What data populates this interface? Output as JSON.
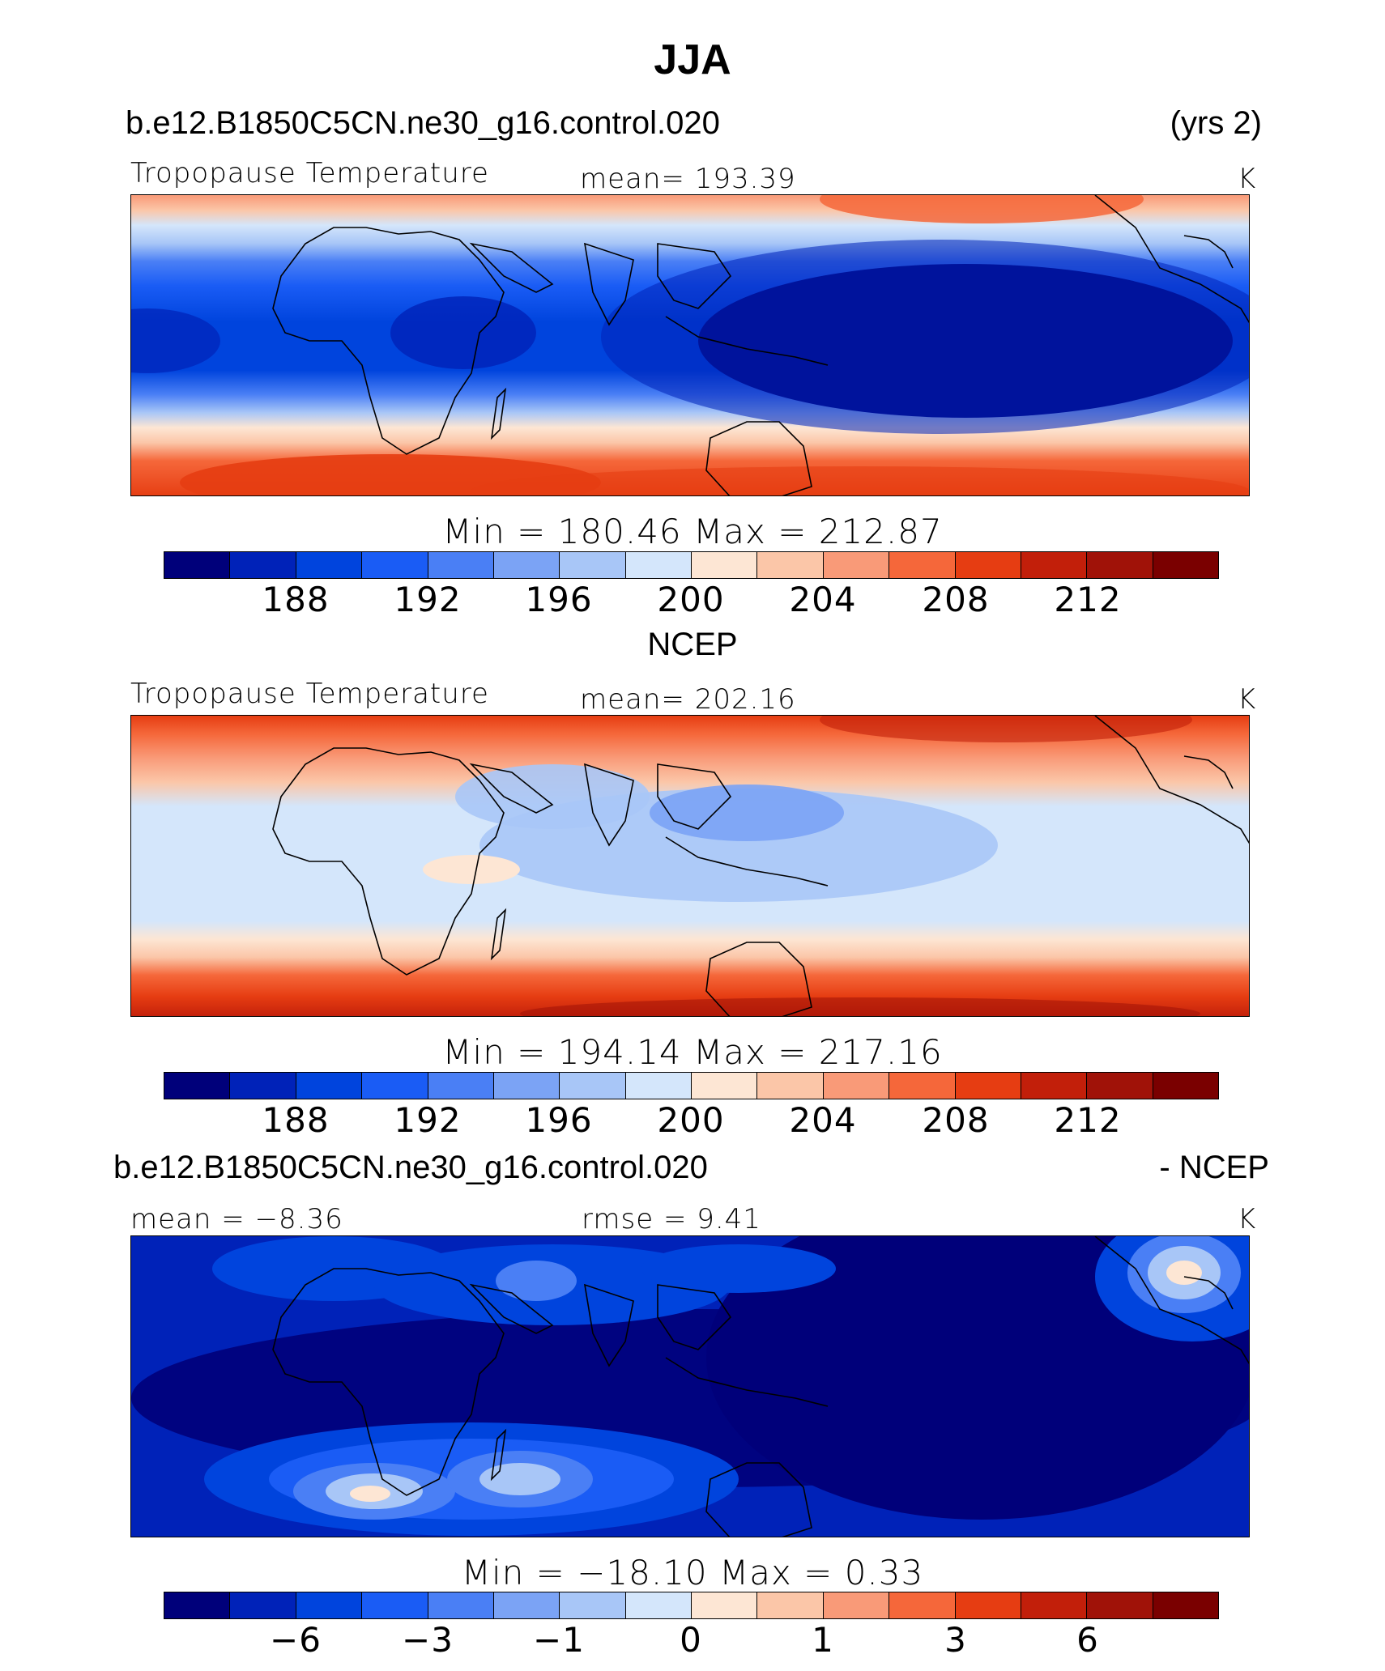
{
  "season": "JJA",
  "case_name": "b.e12.B1850C5CN.ne30_g16.control.020",
  "years": "(yrs 2)",
  "obs_name": "NCEP",
  "diff_suffix": "- NCEP",
  "variable": "Tropopause Temperature",
  "units": "K",
  "colors": {
    "scale": [
      "#00007a",
      "#0022b8",
      "#0044dd",
      "#1a5cf5",
      "#4a7ff5",
      "#7ba3f5",
      "#a8c6f7",
      "#d4e6fb",
      "#fde6d4",
      "#fbc6a8",
      "#f99a78",
      "#f5673a",
      "#e63d12",
      "#c21f0a",
      "#a01208",
      "#7a0000"
    ]
  },
  "chart_data": [
    {
      "type": "heatmap",
      "panel": "model",
      "title": "Tropopause Temperature",
      "mean_text": "mean=  193.39",
      "units": "K",
      "minmax_text": "Min  =  180.46  Max  =  212.87",
      "min": 180.46,
      "max": 212.87,
      "colorbar_ticks": [
        "188",
        "192",
        "196",
        "200",
        "204",
        "208",
        "212"
      ]
    },
    {
      "type": "heatmap",
      "panel": "obs",
      "title": "Tropopause Temperature",
      "mean_text": "mean=  202.16",
      "units": "K",
      "minmax_text": "Min  =  194.14  Max  =  217.16",
      "min": 194.14,
      "max": 217.16,
      "colorbar_ticks": [
        "188",
        "192",
        "196",
        "200",
        "204",
        "208",
        "212"
      ]
    },
    {
      "type": "heatmap",
      "panel": "difference",
      "mean_text": "mean  =    −8.36",
      "rmse_text": "rmse  =     9.41",
      "units": "K",
      "minmax_text": "Min  =  −18.10  Max  =     0.33",
      "min": -18.1,
      "max": 0.33,
      "colorbar_ticks": [
        "−6",
        "−3",
        "−1",
        "0",
        "1",
        "3",
        "6"
      ]
    }
  ]
}
